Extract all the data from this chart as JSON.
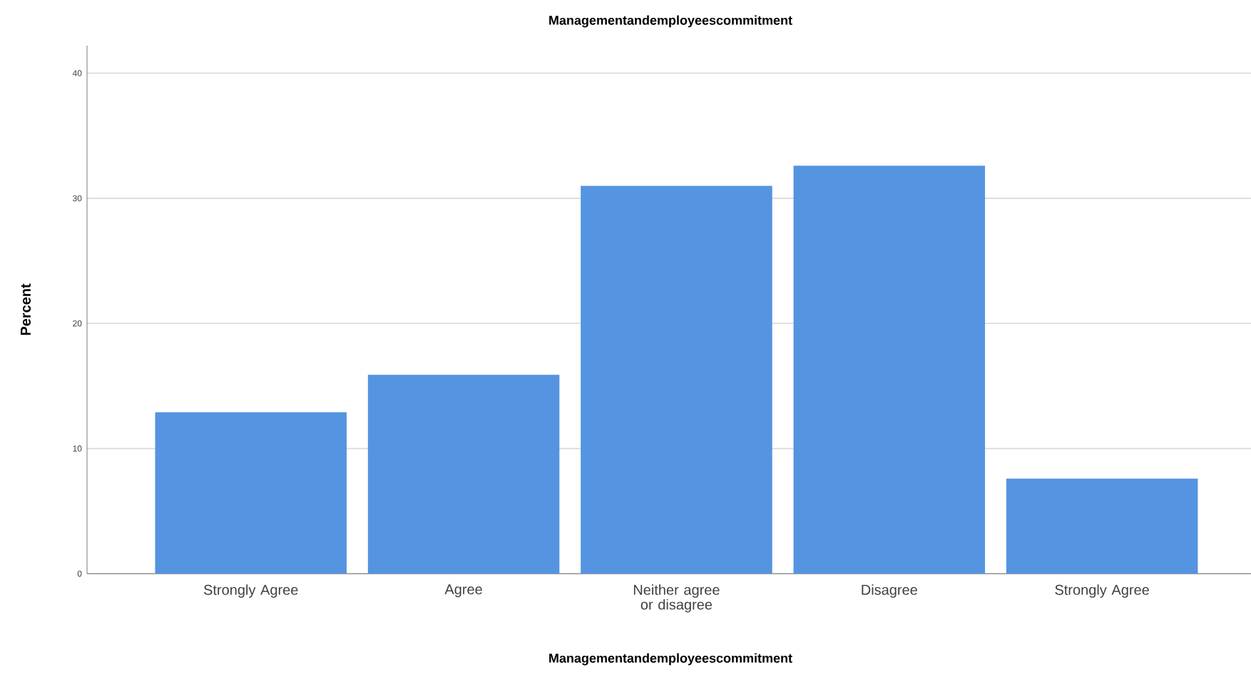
{
  "chart_data": {
    "type": "bar",
    "title": "Managementandemployeescommitment",
    "xlabel": "Managementandemployeescommitment",
    "ylabel": "Percent",
    "categories": [
      "Strongly Agree",
      "Agree",
      "Neither agree or disagree",
      "Disagree",
      "Strongly Agree"
    ],
    "values": [
      12.9,
      15.9,
      31.0,
      32.6,
      7.6
    ],
    "color": "#5594e0",
    "ylim": [
      0,
      42.2
    ],
    "yticks": [
      0,
      10,
      20,
      30,
      40
    ],
    "grid": "y"
  }
}
